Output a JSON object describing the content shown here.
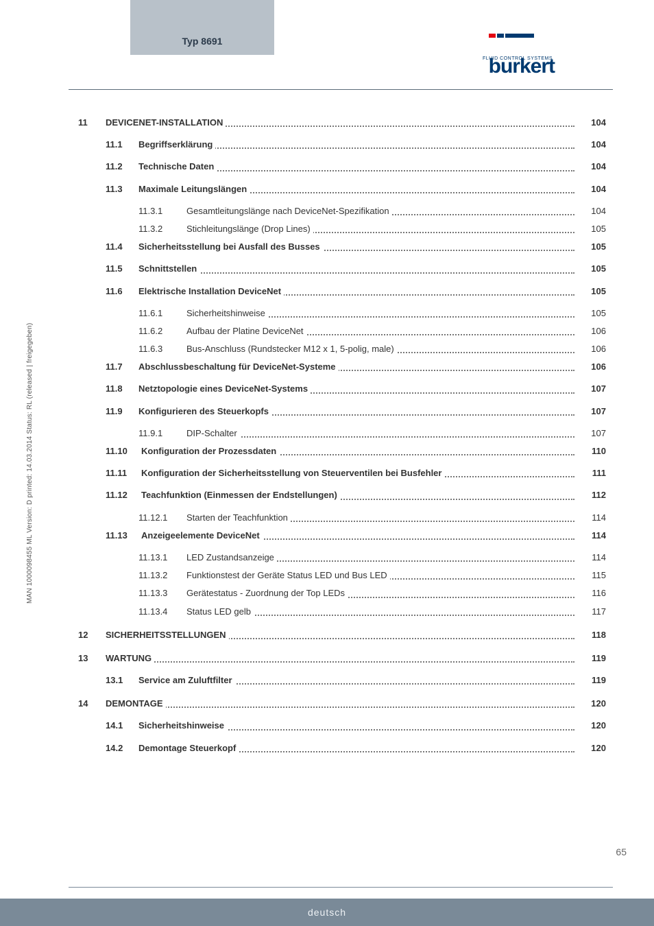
{
  "colors": {
    "tab_bg": "#b8c1c9",
    "tab_text": "#2b3a4a",
    "logo_blue": "#003a70",
    "logo_red": "#e30613",
    "text": "#333333",
    "rule": "#5a6a78",
    "dots": "#777777",
    "footer_bg": "#7a8a98",
    "footer_text": "#eef2f5",
    "pagenum": "#666666"
  },
  "fonts": {
    "body_size_pt": 10,
    "heading_weight": "bold"
  },
  "header": {
    "tab_label": "Typ 8691",
    "logo_text": "burkert",
    "logo_sub": "FLUID CONTROL SYSTEMS"
  },
  "side_text": "MAN 1000098455 ML Version: D  printed: 14.03.2014 Status: RL (released | freigegeben)",
  "page_number": "65",
  "footer": "deutsch",
  "toc": [
    {
      "level": 1,
      "chap": "11",
      "sec": "",
      "sub": "",
      "title": "DEVICENET-INSTALLATION",
      "page": "104",
      "bold": true
    },
    {
      "level": 2,
      "chap": "",
      "sec": "11.1",
      "sub": "",
      "title": "Begriffserklärung",
      "page": "104",
      "bold": true
    },
    {
      "level": 2,
      "chap": "",
      "sec": "11.2",
      "sub": "",
      "title": "Technische Daten",
      "page": "104",
      "bold": true
    },
    {
      "level": 2,
      "chap": "",
      "sec": "11.3",
      "sub": "",
      "title": "Maximale Leitungslängen",
      "page": "104",
      "bold": true
    },
    {
      "level": 3,
      "chap": "",
      "sec": "",
      "sub": "11.3.1",
      "title": "Gesamtleitungslänge nach DeviceNet-Spezifikation",
      "page": "104",
      "bold": false
    },
    {
      "level": 3,
      "chap": "",
      "sec": "",
      "sub": "11.3.2",
      "title": "Stichleitungslänge (Drop Lines)",
      "page": "105",
      "bold": false
    },
    {
      "level": 2,
      "chap": "",
      "sec": "11.4",
      "sub": "",
      "title": "Sicherheitsstellung bei Ausfall des Busses",
      "page": "105",
      "bold": true
    },
    {
      "level": 2,
      "chap": "",
      "sec": "11.5",
      "sub": "",
      "title": "Schnittstellen",
      "page": "105",
      "bold": true
    },
    {
      "level": 2,
      "chap": "",
      "sec": "11.6",
      "sub": "",
      "title": "Elektrische Installation DeviceNet",
      "page": "105",
      "bold": true
    },
    {
      "level": 3,
      "chap": "",
      "sec": "",
      "sub": "11.6.1",
      "title": "Sicherheitshinweise",
      "page": "105",
      "bold": false
    },
    {
      "level": 3,
      "chap": "",
      "sec": "",
      "sub": "11.6.2",
      "title": "Aufbau der Platine DeviceNet",
      "page": "106",
      "bold": false
    },
    {
      "level": 3,
      "chap": "",
      "sec": "",
      "sub": "11.6.3",
      "title": "Bus-Anschluss (Rundstecker M12 x 1, 5-polig, male)",
      "page": "106",
      "bold": false
    },
    {
      "level": 2,
      "chap": "",
      "sec": "11.7",
      "sub": "",
      "title": "Abschlussbeschaltung für DeviceNet-Systeme",
      "page": "106",
      "bold": true
    },
    {
      "level": 2,
      "chap": "",
      "sec": "11.8",
      "sub": "",
      "title": "Netztopologie eines DeviceNet-Systems",
      "page": "107",
      "bold": true
    },
    {
      "level": 2,
      "chap": "",
      "sec": "11.9",
      "sub": "",
      "title": "Konfigurieren des Steuerkopfs",
      "page": "107",
      "bold": true
    },
    {
      "level": 3,
      "chap": "",
      "sec": "",
      "sub": "11.9.1",
      "title": "DIP-Schalter",
      "page": "107",
      "bold": false
    },
    {
      "level": 2,
      "chap": "",
      "sec": "11.10",
      "sub": "",
      "title": "Konfiguration der Prozessdaten",
      "page": "110",
      "bold": true,
      "wide_sec": true
    },
    {
      "level": 2,
      "chap": "",
      "sec": "11.11",
      "sub": "",
      "title": "Konfiguration der Sicherheitsstellung von Steuerventilen bei Busfehler",
      "page": "111",
      "bold": true,
      "wide_sec": true
    },
    {
      "level": 2,
      "chap": "",
      "sec": "11.12",
      "sub": "",
      "title": "Teachfunktion (Einmessen der Endstellungen)",
      "page": "112",
      "bold": true,
      "wide_sec": true
    },
    {
      "level": 3,
      "chap": "",
      "sec": "",
      "sub": "11.12.1",
      "title": "Starten der Teachfunktion",
      "page": "114",
      "bold": false
    },
    {
      "level": 2,
      "chap": "",
      "sec": "11.13",
      "sub": "",
      "title": "Anzeigeelemente DeviceNet",
      "page": "114",
      "bold": true,
      "wide_sec": true
    },
    {
      "level": 3,
      "chap": "",
      "sec": "",
      "sub": "11.13.1",
      "title": "LED Zustandsanzeige",
      "page": "114",
      "bold": false
    },
    {
      "level": 3,
      "chap": "",
      "sec": "",
      "sub": "11.13.2",
      "title": "Funktionstest der Geräte Status LED und Bus LED",
      "page": "115",
      "bold": false
    },
    {
      "level": 3,
      "chap": "",
      "sec": "",
      "sub": "11.13.3",
      "title": "Gerätestatus - Zuordnung der Top LEDs",
      "page": "116",
      "bold": false
    },
    {
      "level": 3,
      "chap": "",
      "sec": "",
      "sub": "11.13.4",
      "title": "Status LED gelb",
      "page": "117",
      "bold": false
    },
    {
      "level": 1,
      "chap": "12",
      "sec": "",
      "sub": "",
      "title": "SICHERHEITSSTELLUNGEN",
      "page": "118",
      "bold": true,
      "gap_before": true
    },
    {
      "level": 1,
      "chap": "13",
      "sec": "",
      "sub": "",
      "title": "WARTUNG",
      "page": "119",
      "bold": true,
      "gap_before": true
    },
    {
      "level": 2,
      "chap": "",
      "sec": "13.1",
      "sub": "",
      "title": "Service am Zuluftfilter",
      "page": "119",
      "bold": true
    },
    {
      "level": 1,
      "chap": "14",
      "sec": "",
      "sub": "",
      "title": "DEMONTAGE",
      "page": "120",
      "bold": true,
      "gap_before": true
    },
    {
      "level": 2,
      "chap": "",
      "sec": "14.1",
      "sub": "",
      "title": "Sicherheitshinweise",
      "page": "120",
      "bold": true
    },
    {
      "level": 2,
      "chap": "",
      "sec": "14.2",
      "sub": "",
      "title": "Demontage Steuerkopf",
      "page": "120",
      "bold": true
    }
  ]
}
